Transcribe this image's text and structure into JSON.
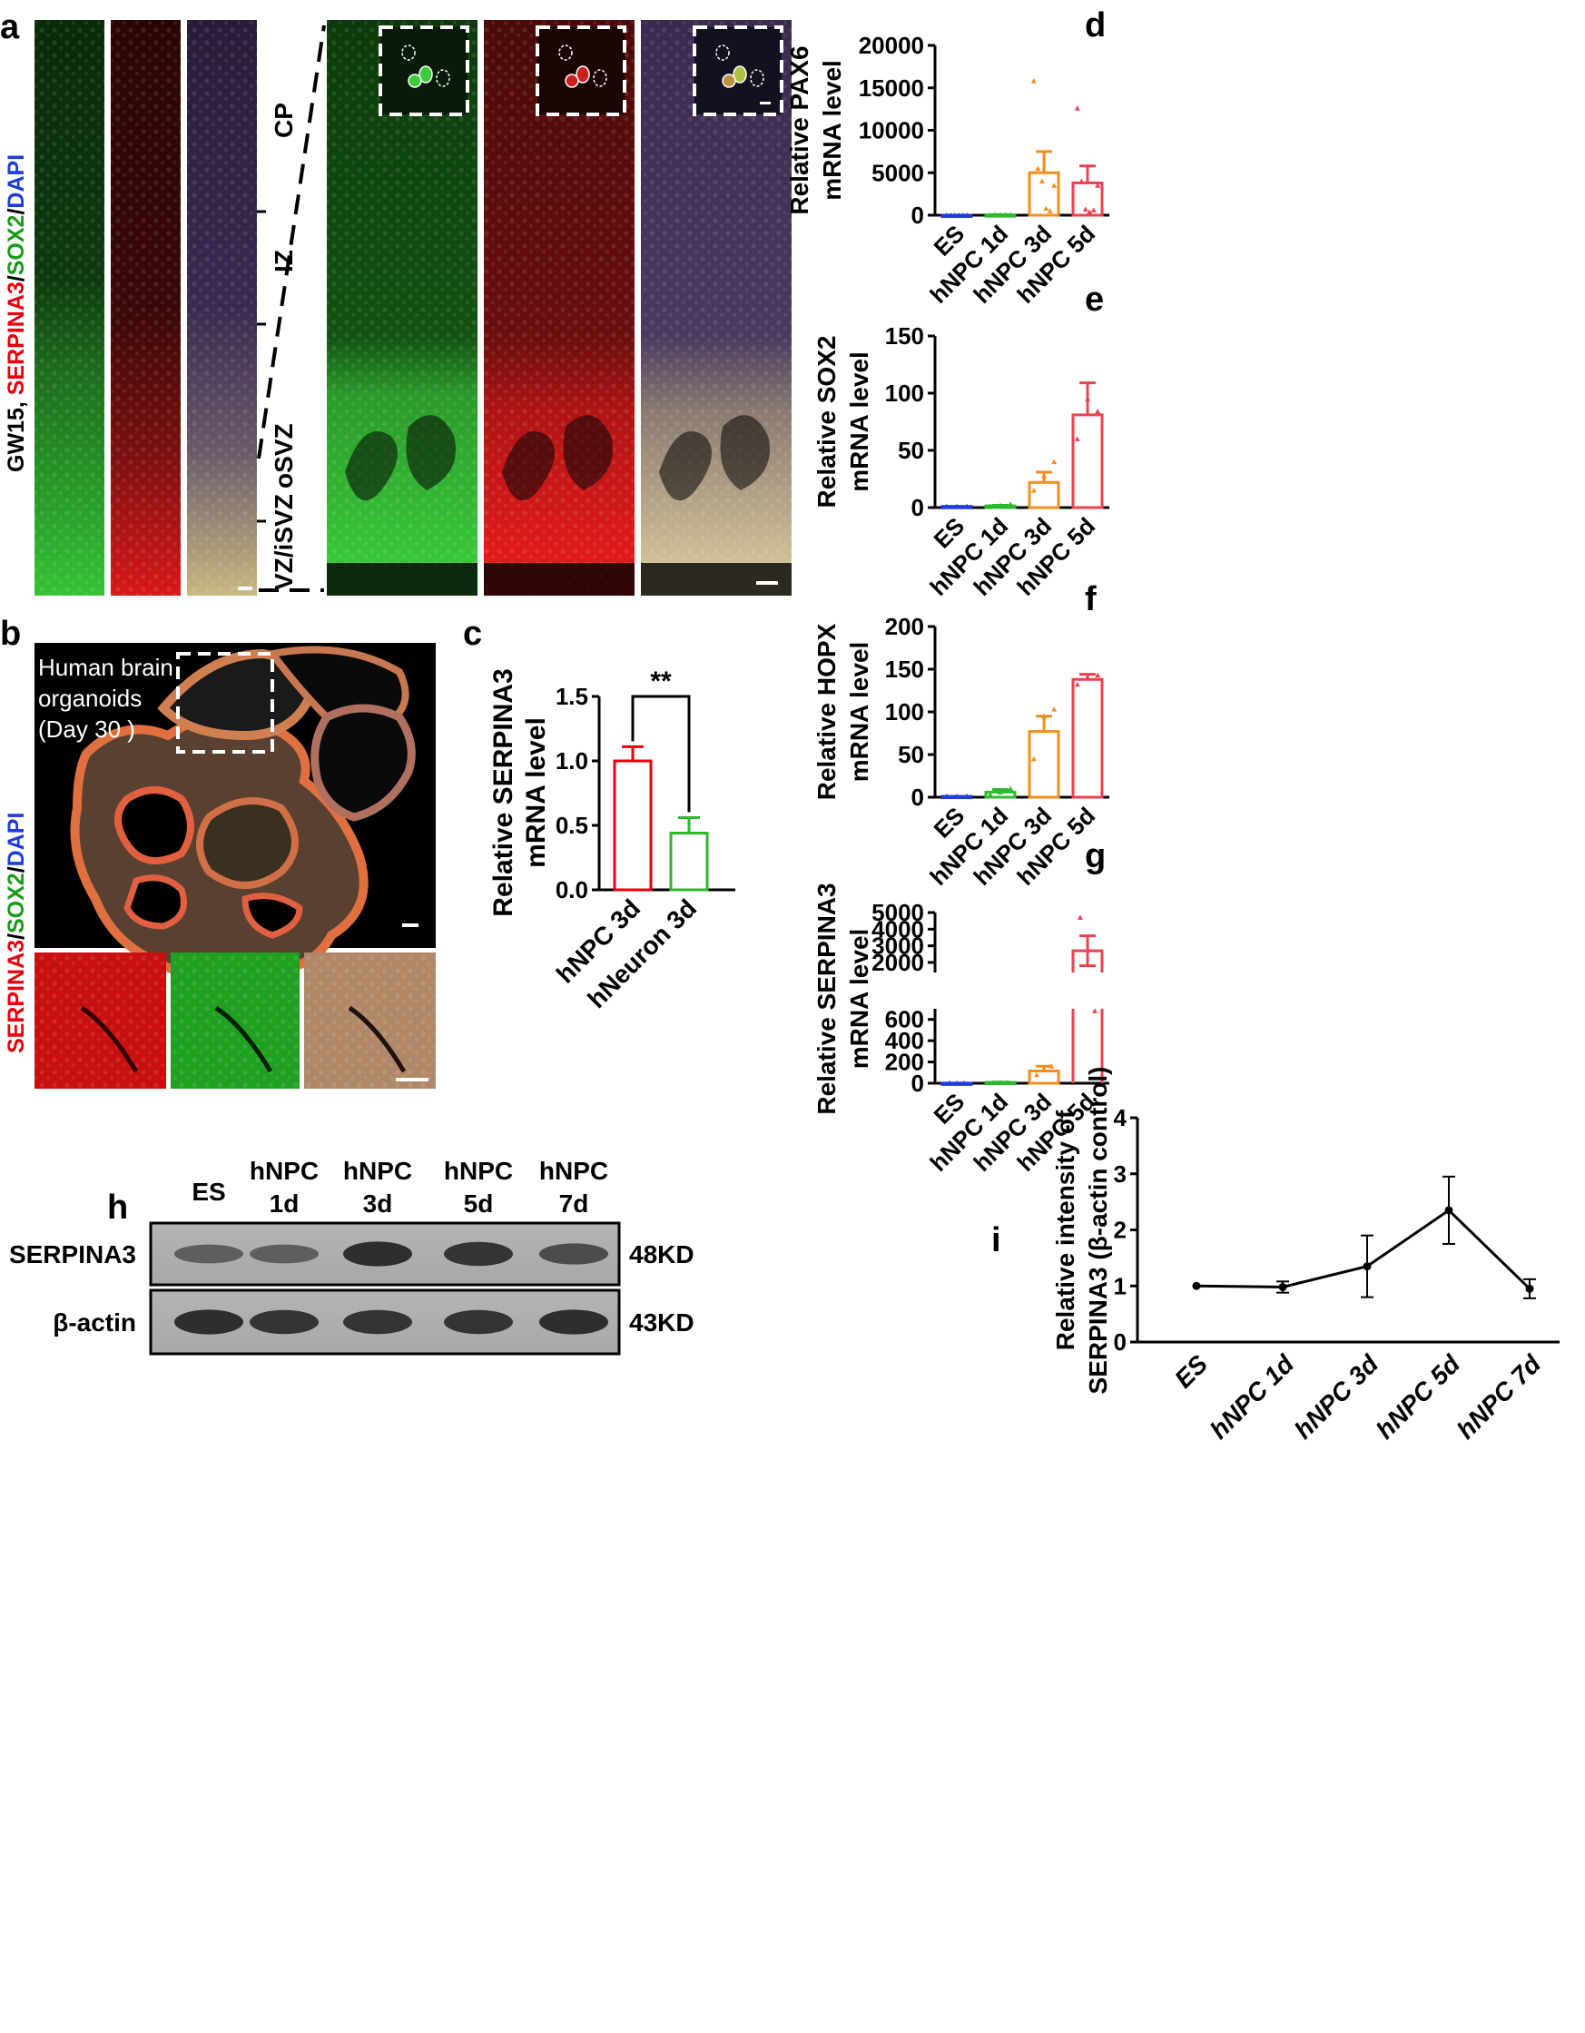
{
  "panels": {
    "a": {
      "letter": "a",
      "side_label": {
        "prefix": "GW15, ",
        "serpina3": "SERPINA3",
        "sep1": "/",
        "sox2": "SOX2",
        "sep2": "/",
        "dapi": "DAPI"
      },
      "zones": [
        "CP",
        "IZ",
        "oSVZ",
        "VZ/iSVZ"
      ]
    },
    "b": {
      "letter": "b",
      "caption_lines": [
        "Human brain",
        "organoids",
        "(Day 30 )"
      ],
      "side_label": {
        "serpina3": "SERPINA3",
        "sep1": "/",
        "sox2": "SOX2",
        "sep2": "/",
        "dapi": "DAPI"
      }
    },
    "c": {
      "letter": "c",
      "significance": "**"
    },
    "d": {
      "letter": "d"
    },
    "e": {
      "letter": "e"
    },
    "f": {
      "letter": "f"
    },
    "g": {
      "letter": "g"
    },
    "h": {
      "letter": "h",
      "lanes": [
        [
          "ES"
        ],
        [
          "hNPC",
          "1d"
        ],
        [
          "hNPC",
          "3d"
        ],
        [
          "hNPC",
          "5d"
        ],
        [
          "hNPC",
          "7d"
        ]
      ],
      "rows": [
        {
          "label": "SERPINA3",
          "size": "48KD",
          "intensity": [
            0.55,
            0.55,
            0.95,
            0.9,
            0.7
          ]
        },
        {
          "label": "β-actin",
          "size": "43KD",
          "intensity": [
            0.95,
            0.9,
            0.9,
            0.9,
            0.95
          ]
        }
      ]
    },
    "i": {
      "letter": "i"
    }
  },
  "colors": {
    "red": "#e8000b",
    "green": "#2db82d",
    "blue": "#1e3cdc",
    "orange": "#f28e1c",
    "pink": "#ee4050",
    "black": "#000000"
  },
  "chart_data": [
    {
      "id": "c",
      "type": "bar",
      "categories": [
        "hNPC 3d",
        "hNeuron 3d"
      ],
      "values": [
        1.0,
        0.44
      ],
      "errors": [
        0.11,
        0.12
      ],
      "colors": [
        "#e8000b",
        "#2db82d"
      ],
      "ylabel": [
        "Relative SERPINA3",
        "mRNA level"
      ],
      "ylim": [
        0,
        1.5
      ],
      "yticks": [
        "0.0",
        "0.5",
        "1.0",
        "1.5"
      ],
      "ytick_values": [
        0,
        0.5,
        1.0,
        1.5
      ]
    },
    {
      "id": "d",
      "type": "bar",
      "categories": [
        "ES",
        "hNPC 1d",
        "hNPC 3d",
        "hNPC 5d"
      ],
      "values": [
        1,
        40,
        5000,
        3800
      ],
      "errors": [
        0,
        30,
        2500,
        2000
      ],
      "points": [
        [
          1,
          1,
          1,
          1,
          1,
          1
        ],
        [
          20,
          40,
          60,
          30,
          50
        ],
        [
          15800,
          5500,
          4000,
          800,
          500,
          3500
        ],
        [
          12600,
          4000,
          700,
          400,
          600,
          3500
        ]
      ],
      "colors": [
        "#1e3cdc",
        "#2db82d",
        "#f28e1c",
        "#ee4050"
      ],
      "ylabel": [
        "Relative PAX6",
        "mRNA level"
      ],
      "ylim": [
        0,
        20000
      ],
      "yticks": [
        "0",
        "5000",
        "10000",
        "15000",
        "20000"
      ],
      "ytick_values": [
        0,
        5000,
        10000,
        15000,
        20000
      ]
    },
    {
      "id": "e",
      "type": "bar",
      "categories": [
        "ES",
        "hNPC 1d",
        "hNPC 3d",
        "hNPC 5d"
      ],
      "values": [
        1,
        1.5,
        22,
        81
      ],
      "errors": [
        0,
        0.5,
        9,
        28
      ],
      "points": [
        [
          1,
          1,
          1
        ],
        [
          1,
          2,
          3
        ],
        [
          15,
          28,
          40
        ],
        [
          60,
          95,
          84
        ]
      ],
      "colors": [
        "#1e3cdc",
        "#2db82d",
        "#f28e1c",
        "#ee4050"
      ],
      "ylabel": [
        "Relative SOX2",
        "mRNA level"
      ],
      "ylim": [
        0,
        150
      ],
      "yticks": [
        "0",
        "50",
        "100",
        "150"
      ],
      "ytick_values": [
        0,
        50,
        100,
        150
      ]
    },
    {
      "id": "f",
      "type": "bar",
      "categories": [
        "ES",
        "hNPC 1d",
        "hNPC 3d",
        "hNPC 5d"
      ],
      "values": [
        1,
        6,
        77,
        138
      ],
      "errors": [
        0,
        3,
        18,
        6
      ],
      "points": [
        [
          1,
          1,
          1
        ],
        [
          3,
          6,
          10
        ],
        [
          45,
          95,
          103
        ],
        [
          132,
          140,
          143
        ]
      ],
      "colors": [
        "#1e3cdc",
        "#2db82d",
        "#f28e1c",
        "#ee4050"
      ],
      "ylabel": [
        "Relative HOPX",
        "mRNA level"
      ],
      "ylim": [
        0,
        200
      ],
      "yticks": [
        "0",
        "50",
        "100",
        "150",
        "200"
      ],
      "ytick_values": [
        0,
        50,
        100,
        150,
        200
      ]
    },
    {
      "id": "g",
      "type": "bar",
      "categories": [
        "ES",
        "hNPC 1d",
        "hNPC 3d",
        "hNPC 5d"
      ],
      "values": [
        1,
        8,
        115,
        2700
      ],
      "errors": [
        0,
        3,
        45,
        900
      ],
      "points": [
        [
          1,
          1,
          1
        ],
        [
          5,
          8,
          10
        ],
        [
          80,
          130,
          160
        ],
        [
          4700,
          2800,
          680
        ]
      ],
      "colors": [
        "#1e3cdc",
        "#2db82d",
        "#f28e1c",
        "#ee4050"
      ],
      "ylabel": [
        "Relative SERPINA3",
        "mRNA level"
      ],
      "yaxis_break": [
        700,
        1000
      ],
      "yticks_lower": [
        "0",
        "200",
        "400",
        "600"
      ],
      "ytick_values_lower": [
        0,
        200,
        400,
        600
      ],
      "yticks_upper": [
        "2000",
        "3000",
        "4000",
        "5000"
      ],
      "ytick_values_upper": [
        2000,
        3000,
        4000,
        5000
      ]
    },
    {
      "id": "i",
      "type": "line",
      "categories": [
        "ES",
        "hNPC 1d",
        "hNPC 3d",
        "hNPC 5d",
        "hNPC 7d"
      ],
      "values": [
        1.0,
        0.98,
        1.35,
        2.35,
        0.95
      ],
      "errors": [
        0,
        0.1,
        0.55,
        0.6,
        0.17
      ],
      "ylabel": [
        "Relative intensity of",
        "SERPINA3 (β-actin control)"
      ],
      "ylim": [
        0,
        4
      ],
      "yticks": [
        "0",
        "1",
        "2",
        "3",
        "4"
      ],
      "ytick_values": [
        0,
        1,
        2,
        3,
        4
      ]
    }
  ]
}
